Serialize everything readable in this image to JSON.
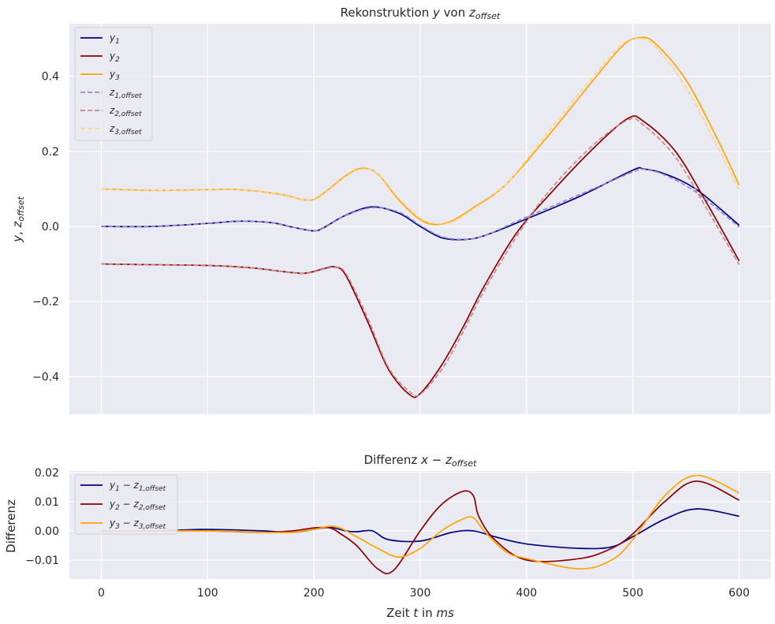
{
  "chart_data": [
    {
      "type": "line",
      "title_parts": [
        "Rekonstruktion ",
        "y",
        " von ",
        "z",
        "offset"
      ],
      "xlabel": "",
      "ylabel_parts": [
        "y",
        ", ",
        "z",
        "offset"
      ],
      "xlim": [
        -30,
        630
      ],
      "ylim": [
        -0.5,
        0.54
      ],
      "xticks": [
        0,
        100,
        200,
        300,
        400,
        500,
        600
      ],
      "yticks": [
        -0.4,
        -0.2,
        0.0,
        0.2,
        0.4
      ],
      "ytick_labels": [
        "−0.4",
        "−0.2",
        "0.0",
        "0.2",
        "0.4"
      ],
      "grid": true,
      "legend_position": "upper-left",
      "series": [
        {
          "name_base": "y",
          "name_sub": "1",
          "style": "solid",
          "color": "#000080",
          "x": [
            0,
            50,
            100,
            130,
            160,
            180,
            200,
            210,
            230,
            255,
            280,
            300,
            320,
            340,
            360,
            400,
            450,
            500,
            510,
            530,
            560,
            600
          ],
          "y": [
            0.0,
            0.0,
            0.008,
            0.014,
            0.01,
            -0.002,
            -0.012,
            -0.002,
            0.03,
            0.052,
            0.035,
            0.0,
            -0.03,
            -0.035,
            -0.025,
            0.02,
            0.08,
            0.15,
            0.153,
            0.14,
            0.098,
            0.003
          ]
        },
        {
          "name_base": "y",
          "name_sub": "2",
          "style": "solid",
          "color": "#8B0000",
          "x": [
            0,
            50,
            100,
            140,
            170,
            190,
            200,
            210,
            220,
            230,
            250,
            270,
            290,
            300,
            320,
            340,
            360,
            390,
            420,
            460,
            495,
            510,
            540,
            570,
            600
          ],
          "y": [
            -0.1,
            -0.102,
            -0.104,
            -0.11,
            -0.12,
            -0.125,
            -0.12,
            -0.112,
            -0.108,
            -0.13,
            -0.25,
            -0.38,
            -0.448,
            -0.445,
            -0.37,
            -0.27,
            -0.16,
            -0.02,
            0.08,
            0.2,
            0.287,
            0.28,
            0.2,
            0.06,
            -0.092
          ]
        },
        {
          "name_base": "y",
          "name_sub": "3",
          "style": "solid",
          "color": "#FFA500",
          "x": [
            0,
            50,
            100,
            130,
            170,
            190,
            200,
            210,
            230,
            245,
            260,
            280,
            300,
            315,
            330,
            350,
            380,
            420,
            460,
            490,
            505,
            520,
            550,
            580,
            600
          ],
          "y": [
            0.1,
            0.096,
            0.098,
            0.098,
            0.085,
            0.071,
            0.072,
            0.09,
            0.135,
            0.155,
            0.14,
            0.07,
            0.018,
            0.005,
            0.015,
            0.05,
            0.11,
            0.24,
            0.38,
            0.48,
            0.502,
            0.49,
            0.39,
            0.23,
            0.11
          ]
        },
        {
          "name_base": "z",
          "name_sub": "1,offset",
          "style": "dashed",
          "color": "#8f8fd0",
          "x": [
            0,
            50,
            100,
            130,
            160,
            180,
            200,
            210,
            230,
            255,
            280,
            300,
            320,
            340,
            360,
            400,
            450,
            500,
            510,
            530,
            560,
            600
          ],
          "y": [
            0.0,
            0.0,
            0.008,
            0.014,
            0.01,
            -0.002,
            -0.012,
            -0.003,
            0.029,
            0.05,
            0.038,
            0.003,
            -0.027,
            -0.034,
            -0.025,
            0.025,
            0.085,
            0.145,
            0.152,
            0.137,
            0.09,
            -0.002
          ]
        },
        {
          "name_base": "z",
          "name_sub": "2,offset",
          "style": "dashed",
          "color": "#c88888",
          "x": [
            0,
            50,
            100,
            140,
            170,
            190,
            200,
            210,
            220,
            230,
            250,
            270,
            290,
            300,
            320,
            340,
            360,
            390,
            420,
            460,
            495,
            510,
            540,
            570,
            600
          ],
          "y": [
            -0.1,
            -0.102,
            -0.104,
            -0.11,
            -0.12,
            -0.125,
            -0.121,
            -0.113,
            -0.109,
            -0.125,
            -0.24,
            -0.375,
            -0.44,
            -0.447,
            -0.382,
            -0.283,
            -0.172,
            -0.03,
            0.09,
            0.21,
            0.283,
            0.27,
            0.185,
            0.045,
            -0.102
          ]
        },
        {
          "name_base": "z",
          "name_sub": "3,offset",
          "style": "dashed",
          "color": "#fcd58c",
          "x": [
            0,
            50,
            100,
            130,
            170,
            190,
            200,
            210,
            230,
            245,
            260,
            280,
            300,
            315,
            330,
            350,
            380,
            420,
            460,
            490,
            505,
            520,
            550,
            580,
            600
          ],
          "y": [
            0.1,
            0.096,
            0.098,
            0.098,
            0.086,
            0.071,
            0.071,
            0.088,
            0.133,
            0.153,
            0.141,
            0.074,
            0.022,
            0.008,
            0.012,
            0.047,
            0.11,
            0.25,
            0.39,
            0.485,
            0.5,
            0.482,
            0.37,
            0.21,
            0.098
          ]
        }
      ]
    },
    {
      "type": "line",
      "title_parts": [
        "Differenz ",
        "x",
        " − ",
        "z",
        "offset"
      ],
      "xlabel_parts": [
        "Zeit ",
        "t",
        " in ",
        "ms"
      ],
      "ylabel": "Differenz",
      "xlim": [
        -30,
        630
      ],
      "ylim": [
        -0.0165,
        0.0205
      ],
      "xticks": [
        0,
        100,
        200,
        300,
        400,
        500,
        600
      ],
      "xtick_labels": [
        "0",
        "100",
        "200",
        "300",
        "400",
        "500",
        "600"
      ],
      "yticks": [
        -0.01,
        0.0,
        0.01,
        0.02
      ],
      "ytick_labels": [
        "−0.01",
        "0.00",
        "0.01",
        "0.02"
      ],
      "grid": true,
      "legend_position": "upper-left",
      "series": [
        {
          "name_base": "y",
          "name_sub": "1",
          "name_minus": "z",
          "name_sub2": "1,offset",
          "color": "#000080",
          "x": [
            0,
            50,
            100,
            150,
            180,
            200,
            215,
            230,
            240,
            255,
            270,
            300,
            330,
            350,
            370,
            400,
            450,
            480,
            500,
            530,
            560,
            600
          ],
          "y": [
            0.0,
            0.0,
            0.0005,
            0.0,
            -0.0005,
            0.0005,
            0.0012,
            0.0,
            -0.0003,
            0.0,
            -0.003,
            -0.0035,
            -0.0005,
            0.0,
            -0.002,
            -0.0045,
            -0.006,
            -0.0055,
            -0.002,
            0.004,
            0.0075,
            0.005
          ]
        },
        {
          "name_base": "y",
          "name_sub": "2",
          "name_minus": "z",
          "name_sub2": "2,offset",
          "color": "#8B0000",
          "x": [
            0,
            50,
            100,
            150,
            180,
            200,
            215,
            225,
            240,
            260,
            275,
            300,
            320,
            340,
            350,
            355,
            370,
            400,
            450,
            480,
            500,
            530,
            560,
            600
          ],
          "y": [
            0.0,
            0.0,
            0.0,
            -0.0005,
            0.0,
            0.001,
            0.001,
            -0.001,
            -0.005,
            -0.013,
            -0.0135,
            0.0,
            0.009,
            0.0135,
            0.012,
            0.005,
            -0.003,
            -0.01,
            -0.0095,
            -0.006,
            -0.001,
            0.01,
            0.017,
            0.0105
          ]
        },
        {
          "name_base": "y",
          "name_sub": "3",
          "name_minus": "z",
          "name_sub2": "3,offset",
          "color": "#FFA500",
          "x": [
            0,
            50,
            100,
            150,
            180,
            200,
            220,
            240,
            260,
            280,
            300,
            320,
            340,
            350,
            360,
            380,
            400,
            450,
            480,
            500,
            530,
            560,
            600
          ],
          "y": [
            0.0,
            0.0,
            0.0,
            -0.0005,
            -0.0005,
            0.0005,
            0.0015,
            -0.002,
            -0.006,
            -0.009,
            -0.006,
            0.0,
            0.004,
            0.0045,
            0.0,
            -0.007,
            -0.0095,
            -0.013,
            -0.01,
            -0.003,
            0.012,
            0.019,
            0.013
          ]
        }
      ]
    }
  ]
}
